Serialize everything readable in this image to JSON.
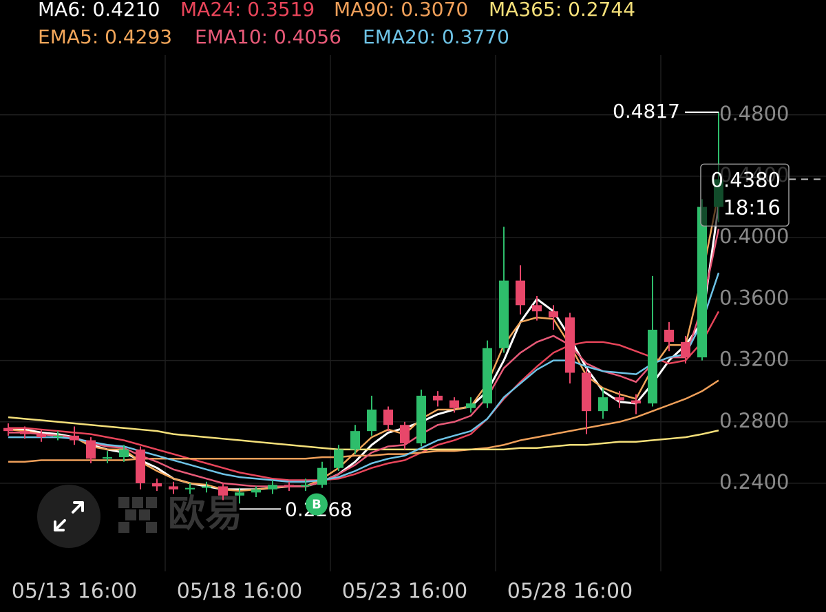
{
  "chart_data": {
    "type": "candlestick",
    "categories": [
      null,
      null,
      null,
      null,
      "05/13 16:00",
      null,
      null,
      null,
      null,
      null,
      null,
      null,
      null,
      null,
      "05/18 16:00",
      null,
      null,
      null,
      null,
      null,
      null,
      null,
      null,
      null,
      "05/23 16:00",
      null,
      null,
      null,
      null,
      null,
      null,
      null,
      null,
      null,
      "05/28 16:00",
      null,
      null,
      null,
      null,
      null,
      null,
      null,
      null,
      null
    ],
    "open": [
      0.276,
      0.274,
      0.272,
      0.27,
      0.271,
      0.268,
      0.256,
      0.257,
      0.262,
      0.24,
      0.238,
      0.236,
      0.237,
      0.238,
      0.232,
      0.234,
      0.236,
      0.239,
      0.238,
      0.239,
      0.25,
      0.262,
      0.274,
      0.288,
      0.278,
      0.266,
      0.297,
      0.294,
      0.289,
      0.292,
      0.328,
      0.372,
      0.356,
      0.352,
      0.348,
      0.312,
      0.287,
      0.296,
      0.294,
      0.292,
      0.34,
      0.332,
      0.322,
      0.42
    ],
    "high": [
      0.279,
      0.277,
      0.275,
      0.274,
      0.277,
      0.27,
      0.261,
      0.265,
      0.264,
      0.243,
      0.241,
      0.24,
      0.241,
      0.24,
      0.237,
      0.238,
      0.242,
      0.241,
      0.243,
      0.254,
      0.265,
      0.278,
      0.297,
      0.29,
      0.28,
      0.301,
      0.3,
      0.296,
      0.296,
      0.333,
      0.407,
      0.382,
      0.362,
      0.356,
      0.351,
      0.315,
      0.302,
      0.3,
      0.298,
      0.375,
      0.345,
      0.336,
      0.425,
      0.4817
    ],
    "low": [
      0.271,
      0.269,
      0.267,
      0.268,
      0.265,
      0.253,
      0.253,
      0.254,
      0.236,
      0.235,
      0.233,
      0.233,
      0.234,
      0.229,
      0.2268,
      0.231,
      0.233,
      0.235,
      0.235,
      0.237,
      0.248,
      0.259,
      0.271,
      0.274,
      0.262,
      0.264,
      0.29,
      0.286,
      0.286,
      0.289,
      0.325,
      0.35,
      0.346,
      0.34,
      0.305,
      0.272,
      0.282,
      0.289,
      0.285,
      0.29,
      0.326,
      0.318,
      0.32,
      0.41
    ],
    "close": [
      0.274,
      0.272,
      0.27,
      0.271,
      0.268,
      0.256,
      0.257,
      0.262,
      0.24,
      0.238,
      0.236,
      0.237,
      0.238,
      0.232,
      0.234,
      0.236,
      0.239,
      0.238,
      0.239,
      0.25,
      0.262,
      0.274,
      0.288,
      0.278,
      0.266,
      0.297,
      0.294,
      0.289,
      0.292,
      0.328,
      0.372,
      0.356,
      0.352,
      0.348,
      0.312,
      0.287,
      0.296,
      0.294,
      0.292,
      0.34,
      0.332,
      0.322,
      0.42,
      0.438
    ],
    "up_color": "#2ebd6b",
    "down_color": "#e8476a",
    "series": [
      {
        "name": "MA6: 0.4210",
        "color": "#ffffff",
        "values": [
          0.276,
          0.275,
          0.273,
          0.272,
          0.27,
          0.265,
          0.262,
          0.26,
          0.255,
          0.25,
          0.243,
          0.24,
          0.238,
          0.236,
          0.236,
          0.236,
          0.237,
          0.238,
          0.238,
          0.241,
          0.246,
          0.254,
          0.265,
          0.273,
          0.276,
          0.28,
          0.285,
          0.288,
          0.29,
          0.3,
          0.32,
          0.345,
          0.36,
          0.352,
          0.335,
          0.315,
          0.3,
          0.293,
          0.292,
          0.305,
          0.32,
          0.33,
          0.345,
          0.421
        ]
      },
      {
        "name": "MA24: 0.3519",
        "color": "#e8455a",
        "values": [
          0.276,
          0.276,
          0.275,
          0.274,
          0.273,
          0.272,
          0.27,
          0.268,
          0.265,
          0.262,
          0.259,
          0.256,
          0.253,
          0.25,
          0.247,
          0.245,
          0.243,
          0.242,
          0.242,
          0.242,
          0.243,
          0.246,
          0.25,
          0.253,
          0.255,
          0.26,
          0.265,
          0.268,
          0.272,
          0.282,
          0.295,
          0.306,
          0.316,
          0.325,
          0.33,
          0.332,
          0.332,
          0.33,
          0.326,
          0.322,
          0.318,
          0.32,
          0.332,
          0.3519
        ]
      },
      {
        "name": "MA90: 0.3070",
        "color": "#f0a05a",
        "values": [
          0.254,
          0.254,
          0.255,
          0.255,
          0.255,
          0.255,
          0.255,
          0.255,
          0.256,
          0.256,
          0.256,
          0.256,
          0.256,
          0.256,
          0.256,
          0.256,
          0.256,
          0.256,
          0.256,
          0.257,
          0.257,
          0.258,
          0.258,
          0.259,
          0.259,
          0.26,
          0.261,
          0.261,
          0.262,
          0.263,
          0.265,
          0.268,
          0.27,
          0.272,
          0.274,
          0.276,
          0.278,
          0.28,
          0.283,
          0.287,
          0.291,
          0.295,
          0.3,
          0.307
        ]
      },
      {
        "name": "MA365: 0.2744",
        "color": "#f5e07a",
        "values": [
          0.283,
          0.282,
          0.281,
          0.28,
          0.279,
          0.278,
          0.277,
          0.276,
          0.275,
          0.274,
          0.272,
          0.271,
          0.27,
          0.269,
          0.268,
          0.267,
          0.266,
          0.265,
          0.264,
          0.263,
          0.262,
          0.262,
          0.262,
          0.262,
          0.262,
          0.262,
          0.262,
          0.262,
          0.262,
          0.262,
          0.262,
          0.263,
          0.263,
          0.264,
          0.265,
          0.265,
          0.266,
          0.267,
          0.267,
          0.268,
          0.269,
          0.27,
          0.272,
          0.2744
        ]
      },
      {
        "name": "EMA5: 0.4293",
        "color": "#f2a65a",
        "values": [
          0.275,
          0.274,
          0.272,
          0.271,
          0.27,
          0.264,
          0.262,
          0.262,
          0.254,
          0.248,
          0.243,
          0.24,
          0.239,
          0.236,
          0.235,
          0.236,
          0.237,
          0.238,
          0.238,
          0.243,
          0.25,
          0.26,
          0.27,
          0.275,
          0.272,
          0.282,
          0.288,
          0.288,
          0.29,
          0.305,
          0.33,
          0.345,
          0.348,
          0.347,
          0.33,
          0.31,
          0.302,
          0.298,
          0.295,
          0.315,
          0.33,
          0.33,
          0.375,
          0.4293
        ]
      },
      {
        "name": "EMA10: 0.4056",
        "color": "#e85a78",
        "values": [
          0.273,
          0.273,
          0.272,
          0.271,
          0.27,
          0.266,
          0.264,
          0.263,
          0.258,
          0.254,
          0.249,
          0.246,
          0.243,
          0.24,
          0.239,
          0.238,
          0.238,
          0.238,
          0.238,
          0.241,
          0.246,
          0.252,
          0.26,
          0.264,
          0.265,
          0.272,
          0.278,
          0.28,
          0.284,
          0.296,
          0.315,
          0.325,
          0.332,
          0.336,
          0.33,
          0.318,
          0.313,
          0.31,
          0.306,
          0.318,
          0.322,
          0.322,
          0.355,
          0.4056
        ]
      },
      {
        "name": "EMA20: 0.3770",
        "color": "#6ec3e6",
        "values": [
          0.27,
          0.27,
          0.27,
          0.27,
          0.269,
          0.267,
          0.265,
          0.264,
          0.261,
          0.258,
          0.255,
          0.252,
          0.249,
          0.246,
          0.244,
          0.243,
          0.242,
          0.241,
          0.241,
          0.242,
          0.244,
          0.248,
          0.253,
          0.256,
          0.258,
          0.263,
          0.268,
          0.271,
          0.274,
          0.282,
          0.296,
          0.305,
          0.314,
          0.32,
          0.32,
          0.316,
          0.313,
          0.312,
          0.311,
          0.318,
          0.322,
          0.324,
          0.345,
          0.377
        ]
      }
    ],
    "ylim": [
      0.1826,
      0.5189
    ],
    "yticks": [
      {
        "value": 0.24,
        "label": "0.2400"
      },
      {
        "value": 0.28,
        "label": "0.2800"
      },
      {
        "value": 0.32,
        "label": "0.3200"
      },
      {
        "value": 0.36,
        "label": "0.3600"
      },
      {
        "value": 0.4,
        "label": "0.4000"
      },
      {
        "value": 0.44,
        "label": "0.4400"
      },
      {
        "value": 0.48,
        "label": "0.4800"
      }
    ],
    "grid": true,
    "max_label": "0.4817",
    "min_label": "0.2268",
    "last_price_label": "0.4380",
    "countdown": "18:16",
    "buy_marker": "B",
    "watermark": "欧易"
  }
}
